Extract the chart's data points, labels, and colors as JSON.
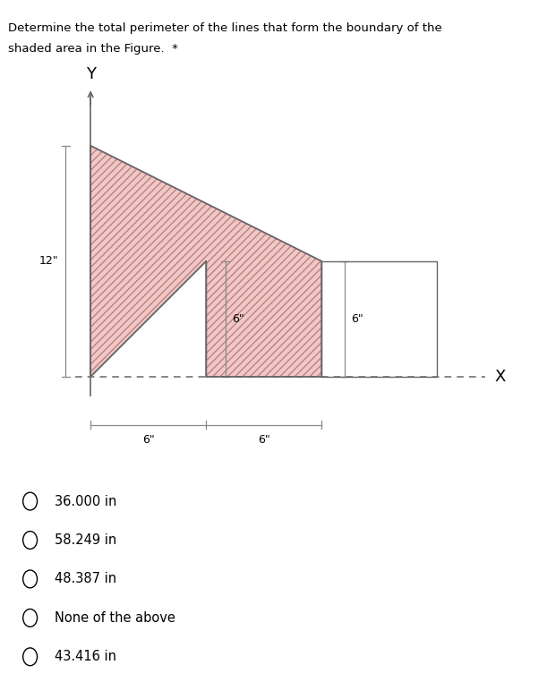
{
  "title_line1": "Determine the total perimeter of the lines that form the boundary of the",
  "title_line2": "shaded area in the Figure.  *",
  "bg_color": "#ffffff",
  "shade_color": "#f0c8c8",
  "hatch_color": "#c08080",
  "border_color": "#666666",
  "axis_color": "#666666",
  "dim_color": "#888888",
  "x_label": "X",
  "y_label": "Y",
  "shape_vertices_x": [
    0,
    12,
    12,
    6,
    6,
    0,
    0
  ],
  "shape_vertices_y": [
    12,
    6,
    0,
    0,
    6,
    0,
    12
  ],
  "choices": [
    "36.000 in",
    "58.249 in",
    "48.387 in",
    "None of the above",
    "43.416 in"
  ]
}
